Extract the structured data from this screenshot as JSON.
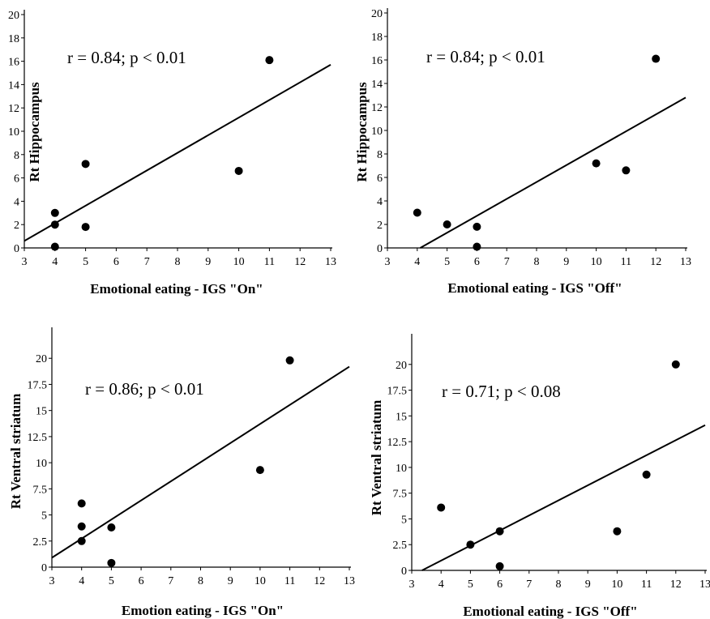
{
  "chart_data": [
    {
      "type": "scatter",
      "xlabel": "Emotional eating - IGS \"On\"",
      "ylabel": "Rt Hippocampus",
      "annotation": "r = 0.84; p < 0.01",
      "xlim": [
        3,
        13
      ],
      "ylim": [
        0,
        20
      ],
      "xticks": [
        3,
        4,
        5,
        6,
        7,
        8,
        9,
        10,
        11,
        12,
        13
      ],
      "yticks": [
        0,
        2,
        4,
        6,
        8,
        10,
        12,
        14,
        16,
        18,
        20
      ],
      "x": [
        4,
        4,
        4,
        5,
        5,
        10,
        11
      ],
      "y": [
        0.1,
        2.0,
        3.0,
        1.8,
        7.2,
        6.6,
        16.1
      ],
      "fit_line": {
        "x": [
          3,
          13
        ],
        "y": [
          0.6,
          15.7
        ]
      },
      "grid": false
    },
    {
      "type": "scatter",
      "xlabel": "Emotional eating - IGS \"Off\"",
      "ylabel": "Rt Hippocampus",
      "annotation": "r = 0.84; p < 0.01",
      "xlim": [
        3,
        13
      ],
      "ylim": [
        0,
        20
      ],
      "xticks": [
        3,
        4,
        5,
        6,
        7,
        8,
        9,
        10,
        11,
        12,
        13
      ],
      "yticks": [
        0,
        2,
        4,
        6,
        8,
        10,
        12,
        14,
        16,
        18,
        20
      ],
      "x": [
        4,
        5,
        6,
        6,
        10,
        11,
        12
      ],
      "y": [
        3.0,
        2.0,
        1.8,
        0.1,
        7.2,
        6.6,
        16.1
      ],
      "fit_line": {
        "x": [
          4.1,
          13
        ],
        "y": [
          0,
          12.8
        ]
      },
      "grid": false
    },
    {
      "type": "scatter",
      "xlabel": "Emotion eating - IGS \"On\"",
      "ylabel": "Rt Ventral striatum",
      "annotation": "r = 0.86; p < 0.01",
      "xlim": [
        3,
        13
      ],
      "ylim": [
        0,
        22.5
      ],
      "xticks": [
        3,
        4,
        5,
        6,
        7,
        8,
        9,
        10,
        11,
        12,
        13
      ],
      "yticks": [
        0,
        2.5,
        5,
        7.5,
        10,
        12.5,
        15,
        17.5,
        20
      ],
      "x": [
        4,
        4,
        4,
        5,
        5,
        10,
        11
      ],
      "y": [
        2.5,
        3.9,
        6.1,
        3.8,
        0.4,
        9.3,
        19.8
      ],
      "fit_line": {
        "x": [
          3,
          13
        ],
        "y": [
          0.9,
          19.2
        ]
      },
      "grid": false
    },
    {
      "type": "scatter",
      "xlabel": "Emotional eating - IGS \"Off\"",
      "ylabel": "Rt Ventral striatum",
      "annotation": "r = 0.71; p < 0.08",
      "xlim": [
        3,
        13
      ],
      "ylim": [
        0,
        22.5
      ],
      "xticks": [
        3,
        4,
        5,
        6,
        7,
        8,
        9,
        10,
        11,
        12,
        13
      ],
      "yticks": [
        0,
        2.5,
        5,
        7.5,
        10,
        12.5,
        15,
        17.5,
        20
      ],
      "x": [
        4,
        5,
        6,
        6,
        10,
        11,
        12
      ],
      "y": [
        6.1,
        2.5,
        3.8,
        0.4,
        3.8,
        9.3,
        20.0
      ],
      "fit_line": {
        "x": [
          3.35,
          13
        ],
        "y": [
          0,
          14.1
        ]
      },
      "grid": false
    }
  ]
}
